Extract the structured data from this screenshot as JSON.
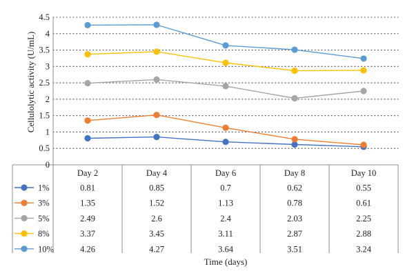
{
  "chart_data": {
    "type": "line",
    "xlabel": "Time (days)",
    "ylabel": "Cellulolytic activity (U/mL)",
    "categories": [
      "Day 2",
      "Day 4",
      "Day 6",
      "Day 8",
      "Day 10"
    ],
    "ylim": [
      0,
      4.5
    ],
    "yticks": [
      "0",
      "0.5",
      "1",
      "1.5",
      "2",
      "2.5",
      "3",
      "3.5",
      "4",
      "4.5"
    ],
    "grid": "horizontal-dotted",
    "legend": "data-table-below",
    "series": [
      {
        "name": "1%",
        "color": "#4472c4",
        "values": [
          0.81,
          0.85,
          0.7,
          0.62,
          0.55
        ]
      },
      {
        "name": "3%",
        "color": "#ed7d31",
        "values": [
          1.35,
          1.52,
          1.13,
          0.78,
          0.61
        ]
      },
      {
        "name": "5%",
        "color": "#a5a5a5",
        "values": [
          2.49,
          2.6,
          2.4,
          2.03,
          2.25
        ]
      },
      {
        "name": "8%",
        "color": "#ffc000",
        "values": [
          3.37,
          3.45,
          3.11,
          2.87,
          2.88
        ]
      },
      {
        "name": "10%",
        "color": "#5b9bd5",
        "values": [
          4.26,
          4.27,
          3.64,
          3.51,
          3.24
        ]
      }
    ],
    "table_values": [
      [
        "0.81",
        "0.85",
        "0.7",
        "0.62",
        "0.55"
      ],
      [
        "1.35",
        "1.52",
        "1.13",
        "0.78",
        "0.61"
      ],
      [
        "2.49",
        "2.6",
        "2.4",
        "2.03",
        "2.25"
      ],
      [
        "3.37",
        "3.45",
        "3.11",
        "2.87",
        "2.88"
      ],
      [
        "4.26",
        "4.27",
        "3.64",
        "3.51",
        "3.24"
      ]
    ]
  }
}
